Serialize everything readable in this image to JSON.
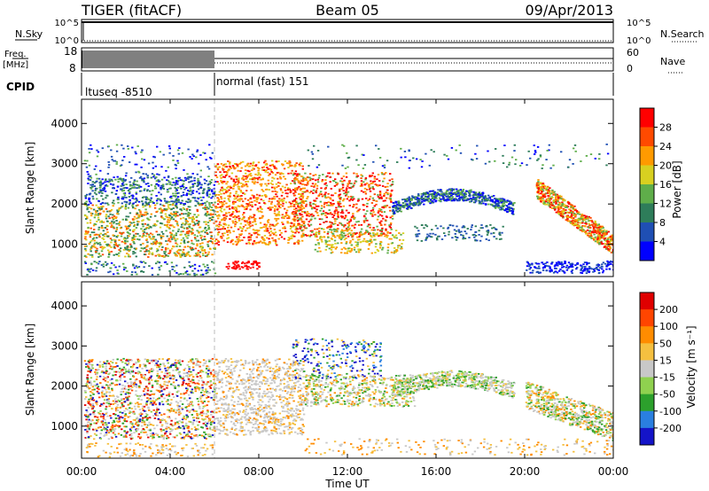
{
  "header": {
    "title": "TIGER (fitACF)",
    "beam": "Beam 05",
    "date": "09/Apr/2013"
  },
  "chart_data": [
    {
      "type": "line",
      "panel": "noise",
      "left_label": "N.Sky",
      "right_label": "N.Search",
      "left_ticks": [
        "10^5",
        "10^0"
      ],
      "right_ticks": [
        "10^5",
        "10^0"
      ]
    },
    {
      "type": "line",
      "panel": "frequency",
      "left_label_line1": "Freq.",
      "left_label_line2": "[MHz]",
      "left_ticks": [
        "18",
        "8"
      ],
      "right_label": "Nave",
      "right_ticks": [
        "60",
        "0"
      ]
    },
    {
      "type": "table",
      "panel": "cpid",
      "label": "CPID",
      "segments": [
        {
          "name": "ltuseq -8510",
          "start_hour": 0,
          "end_hour": 6
        },
        {
          "name": "normal (fast) 151",
          "start_hour": 6,
          "end_hour": 24
        }
      ]
    },
    {
      "type": "heatmap",
      "panel": "power",
      "ylabel": "Slant Range [km]",
      "yticks": [
        "4000",
        "3000",
        "2000",
        "1000"
      ],
      "ylim": [
        200,
        4600
      ],
      "xlim": [
        0,
        24
      ],
      "colorbar_label": "Power [dB]",
      "colorbar_ticks": [
        "28",
        "24",
        "20",
        "16",
        "12",
        "8",
        "4"
      ],
      "colorbar_range": [
        0,
        30
      ],
      "colors": [
        "#0000ff",
        "#1f4fb4",
        "#2e7d5a",
        "#5fae4a",
        "#d8d020",
        "#ff9a00",
        "#ff4a00",
        "#ff0000"
      ]
    },
    {
      "type": "heatmap",
      "panel": "velocity",
      "ylabel": "Slant Range [km]",
      "yticks": [
        "4000",
        "3000",
        "2000",
        "1000"
      ],
      "ylim": [
        200,
        4600
      ],
      "xlim": [
        0,
        24
      ],
      "colorbar_label": "Velocity [m s⁻¹]",
      "colorbar_ticks": [
        "200",
        "100",
        "50",
        "15",
        "-15",
        "-50",
        "-100",
        "-200"
      ],
      "colors": [
        "#1414c8",
        "#2a7fe0",
        "#2ca02c",
        "#8fd14f",
        "#c8c8c8",
        "#f5c040",
        "#ff8c00",
        "#ff4500",
        "#e00000"
      ]
    }
  ],
  "axis": {
    "xlabel": "Time UT",
    "xticks": [
      "00:00",
      "04:00",
      "08:00",
      "12:00",
      "16:00",
      "20:00",
      "00:00"
    ]
  }
}
